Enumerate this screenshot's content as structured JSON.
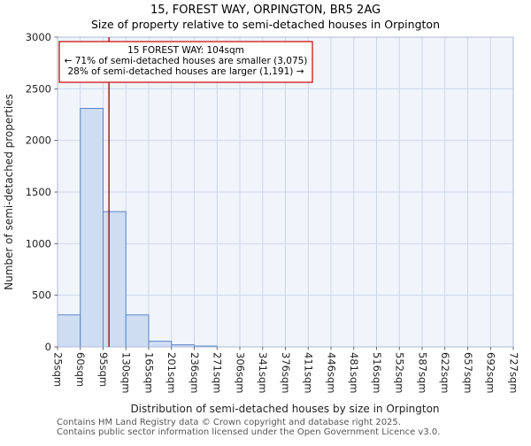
{
  "chart_data": {
    "type": "bar",
    "title": "15, FOREST WAY, ORPINGTON, BR5 2AG",
    "subtitle": "Size of property relative to semi-detached houses in Orpington",
    "xlabel": "Distribution of semi-detached houses by size in Orpington",
    "ylabel": "Number of semi-detached properties",
    "categories": [
      "25sqm",
      "60sqm",
      "95sqm",
      "130sqm",
      "165sqm",
      "201sqm",
      "236sqm",
      "271sqm",
      "306sqm",
      "341sqm",
      "376sqm",
      "411sqm",
      "446sqm",
      "481sqm",
      "516sqm",
      "552sqm",
      "587sqm",
      "622sqm",
      "657sqm",
      "692sqm",
      "727sqm"
    ],
    "values": [
      310,
      2310,
      1310,
      310,
      55,
      20,
      8,
      0,
      0,
      0,
      0,
      0,
      0,
      0,
      0,
      0,
      0,
      0,
      0,
      0
    ],
    "ylim": [
      0,
      3000
    ],
    "yticks": [
      0,
      500,
      1000,
      1500,
      2000,
      2500,
      3000
    ],
    "grid": true,
    "legend": "none",
    "plot_bg": "#f0f4fb",
    "grid_color": "#cdd7ea",
    "frame_color": "#aebbd4",
    "bar_fill": "#cfddf2",
    "bar_stroke": "#5a86c5",
    "marker": {
      "value": 104,
      "color": "#990000"
    },
    "annotation": {
      "lines": [
        "15 FOREST WAY: 104sqm",
        "← 71% of semi-detached houses are smaller (3,075)",
        "28% of semi-detached houses are larger (1,191) →"
      ],
      "border_color": "#cc0000",
      "fill": "#ffffff"
    }
  },
  "footer": {
    "line1": "Contains HM Land Registry data © Crown copyright and database right 2025.",
    "line2": "Contains public sector information licensed under the Open Government Licence v3.0."
  }
}
